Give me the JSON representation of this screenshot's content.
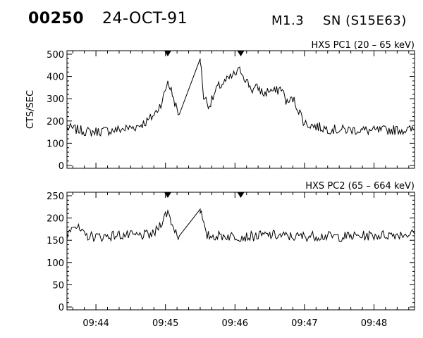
{
  "header": {
    "event_id": "00250",
    "date": "24-OCT-91",
    "flare_class": "M1.3",
    "location": "SN (S15E63)"
  },
  "chart_data": [
    {
      "type": "line",
      "title": "HXS PC1 (20 – 65 keV)",
      "ylabel": "CTS/SEC",
      "xlabel": "",
      "ylim": [
        0,
        500
      ],
      "yticks": [
        "0",
        "100",
        "200",
        "300",
        "400",
        "500"
      ],
      "xlim": [
        "09:43:35",
        "09:48:35"
      ],
      "xticks": [
        "09:44",
        "09:45",
        "09:46",
        "09:47",
        "09:48"
      ],
      "markers_x": [
        "09:45:02",
        "09:46:05"
      ],
      "gap": [
        "09:45:11",
        "09:45:30"
      ],
      "series": [
        {
          "x": [
            "09:43:35",
            "09:43:45",
            "09:43:55",
            "09:44:05",
            "09:44:15",
            "09:44:25",
            "09:44:35",
            "09:44:45",
            "09:44:52",
            "09:44:58",
            "09:45:02",
            "09:45:06",
            "09:45:11",
            "09:45:30",
            "09:45:33",
            "09:45:38",
            "09:45:45",
            "09:45:55",
            "09:46:00",
            "09:46:05",
            "09:46:10",
            "09:46:15",
            "09:46:20",
            "09:46:25",
            "09:46:30",
            "09:46:35",
            "09:46:40",
            "09:46:45",
            "09:46:50",
            "09:46:55",
            "09:47:00",
            "09:47:10",
            "09:47:20",
            "09:47:30",
            "09:47:45",
            "09:48:00",
            "09:48:15",
            "09:48:35"
          ],
          "values": [
            170,
            160,
            150,
            155,
            158,
            165,
            175,
            200,
            240,
            300,
            380,
            320,
            230,
            480,
            310,
            270,
            350,
            390,
            410,
            430,
            380,
            340,
            350,
            320,
            340,
            330,
            350,
            280,
            300,
            250,
            190,
            175,
            165,
            160,
            160,
            155,
            160,
            160
          ]
        }
      ]
    },
    {
      "type": "line",
      "title": "HXS PC2 (65 – 664 keV)",
      "ylabel": "",
      "xlabel": "",
      "ylim": [
        0,
        250
      ],
      "yticks": [
        "0",
        "50",
        "100",
        "150",
        "200",
        "250"
      ],
      "xlim": [
        "09:43:35",
        "09:48:35"
      ],
      "xticks": [
        "09:44",
        "09:45",
        "09:46",
        "09:47",
        "09:48"
      ],
      "markers_x": [
        "09:45:02",
        "09:46:05"
      ],
      "gap": [
        "09:45:11",
        "09:45:30"
      ],
      "series": [
        {
          "x": [
            "09:43:35",
            "09:43:40",
            "09:43:50",
            "09:44:05",
            "09:44:20",
            "09:44:35",
            "09:44:50",
            "09:45:02",
            "09:45:06",
            "09:45:11",
            "09:45:30",
            "09:45:35",
            "09:45:50",
            "09:46:10",
            "09:46:30",
            "09:46:50",
            "09:47:10",
            "09:47:30",
            "09:47:50",
            "09:48:10",
            "09:48:35"
          ],
          "values": [
            160,
            190,
            160,
            158,
            162,
            160,
            163,
            215,
            185,
            160,
            220,
            160,
            160,
            158,
            162,
            158,
            160,
            158,
            160,
            162,
            165
          ]
        }
      ]
    }
  ]
}
